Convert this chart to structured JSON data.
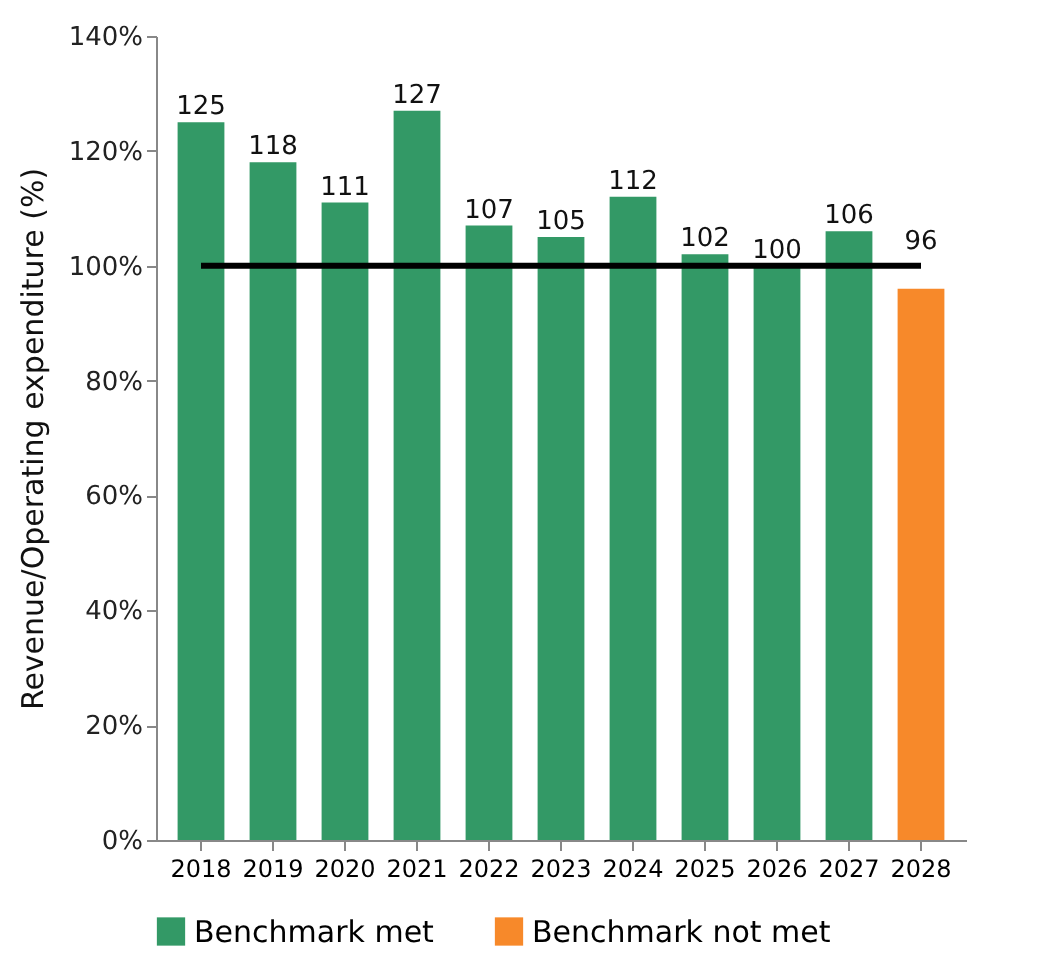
{
  "chart_data": {
    "type": "bar",
    "ylabel": "Revenue/Operating expenditure (%)",
    "categories": [
      "2018",
      "2019",
      "2020",
      "2021",
      "2022",
      "2023",
      "2024",
      "2025",
      "2026",
      "2027",
      "2028"
    ],
    "series": [
      {
        "name": "Benchmark met",
        "color": "#339966",
        "values": [
          125,
          118,
          111,
          127,
          107,
          105,
          112,
          102,
          100,
          106,
          null
        ]
      },
      {
        "name": "Benchmark not met",
        "color": "#f7892a",
        "values": [
          null,
          null,
          null,
          null,
          null,
          null,
          null,
          null,
          null,
          null,
          96
        ]
      }
    ],
    "ylim": [
      0,
      140
    ],
    "yticks": [
      {
        "value": 0,
        "label": "0%"
      },
      {
        "value": 20,
        "label": "20%"
      },
      {
        "value": 40,
        "label": "40%"
      },
      {
        "value": 60,
        "label": "60%"
      },
      {
        "value": 80,
        "label": "80%"
      },
      {
        "value": 100,
        "label": "100%"
      },
      {
        "value": 120,
        "label": "120%"
      },
      {
        "value": 140,
        "label": "140%"
      }
    ],
    "ref_lines": [
      {
        "axis": "y",
        "value": 100,
        "color": "#000000"
      }
    ],
    "data_labels": true,
    "grid": false,
    "legend": "bottom"
  }
}
